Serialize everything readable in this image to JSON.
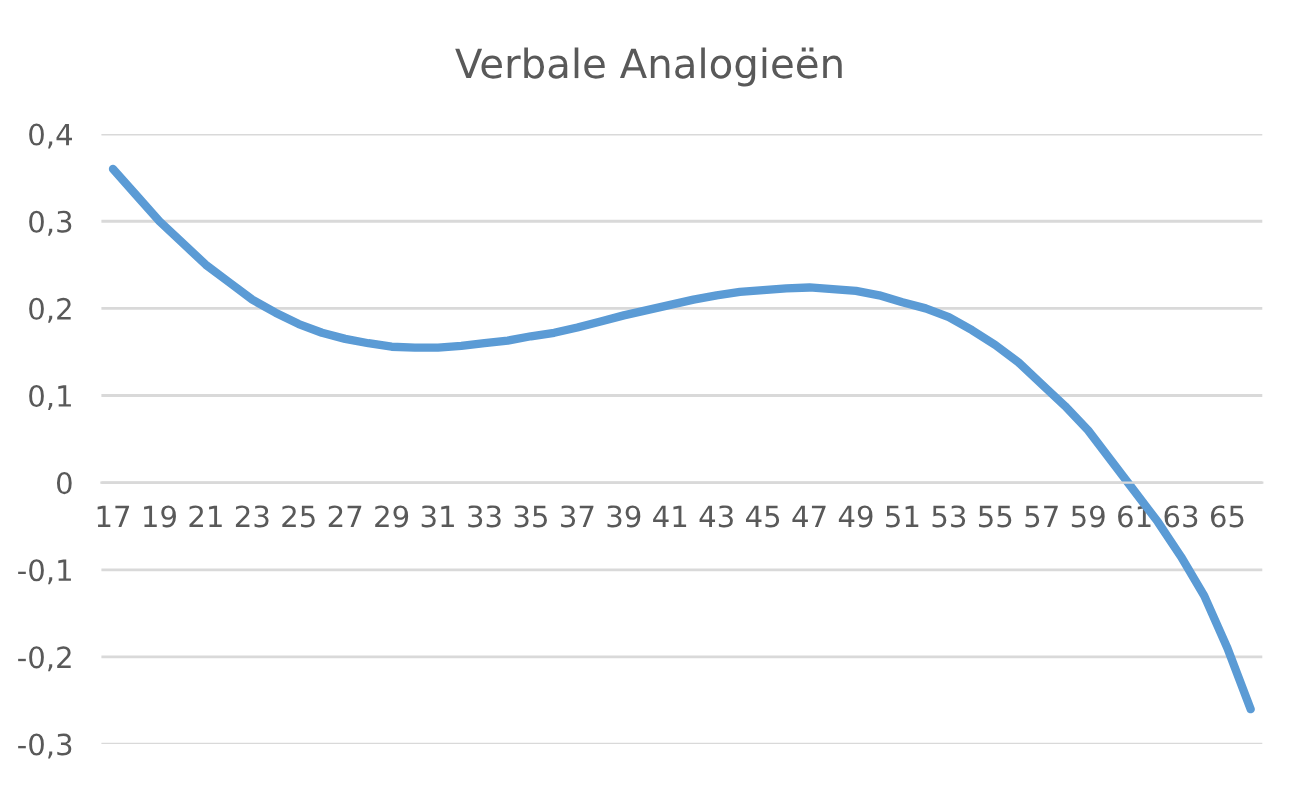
{
  "chart_data": {
    "type": "line",
    "title": "Verbale Analogieën",
    "categories": [
      "17",
      null,
      "19",
      null,
      "21",
      null,
      "23",
      null,
      "25",
      null,
      "27",
      null,
      "29",
      null,
      "31",
      null,
      "33",
      null,
      "35",
      null,
      "37",
      null,
      "39",
      null,
      "41",
      null,
      "43",
      null,
      "45",
      null,
      "47",
      null,
      "49",
      null,
      "51",
      null,
      "53",
      null,
      "55",
      null,
      "57",
      null,
      "59",
      null,
      "61",
      null,
      "63",
      null,
      "65",
      null
    ],
    "series": [
      {
        "color": "#5b9bd5",
        "values": [
          0.36,
          0.33,
          0.3,
          0.275,
          0.25,
          0.23,
          0.21,
          0.195,
          0.182,
          0.172,
          0.165,
          0.16,
          0.156,
          0.155,
          0.155,
          0.157,
          0.16,
          0.163,
          0.168,
          0.172,
          0.178,
          0.185,
          0.192,
          0.198,
          0.204,
          0.21,
          0.215,
          0.219,
          0.221,
          0.223,
          0.224,
          0.222,
          0.22,
          0.215,
          0.207,
          0.2,
          0.19,
          0.175,
          0.158,
          0.138,
          0.113,
          0.088,
          0.06,
          0.025,
          -0.01,
          -0.045,
          -0.085,
          -0.13,
          -0.19,
          -0.26
        ]
      }
    ],
    "ylim": [
      -0.3,
      0.4
    ],
    "yticks": [
      {
        "value": -0.3,
        "label": "-0,3"
      },
      {
        "value": -0.2,
        "label": "-0,2"
      },
      {
        "value": -0.1,
        "label": "-0,1"
      },
      {
        "value": 0,
        "label": "0"
      },
      {
        "value": 0.1,
        "label": "0,1"
      },
      {
        "value": 0.2,
        "label": "0,2"
      },
      {
        "value": 0.3,
        "label": "0,3"
      },
      {
        "value": 0.4,
        "label": "0,4"
      }
    ],
    "grid": "y",
    "marker": "none",
    "line_style": "solid",
    "legend": false
  }
}
